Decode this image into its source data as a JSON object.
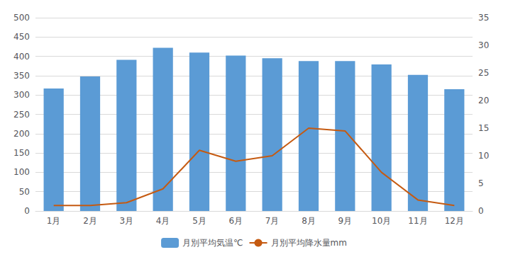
{
  "chart_data": {
    "type": "bar",
    "categories": [
      "1月",
      "2月",
      "3月",
      "4月",
      "5月",
      "6月",
      "7月",
      "8月",
      "9月",
      "10月",
      "11月",
      "12月"
    ],
    "series": [
      {
        "name": "月別平均気温℃",
        "type": "bar",
        "color": "#5B9BD5",
        "values": [
          317,
          348,
          391,
          422,
          410,
          402,
          395,
          388,
          388,
          379,
          352,
          315
        ]
      },
      {
        "name": "月別平均降水量mm",
        "type": "line",
        "color": "#C55A11",
        "axis": "y2",
        "values": [
          1.0,
          1.0,
          1.5,
          4.0,
          11.0,
          9.0,
          10.0,
          15.0,
          14.5,
          7.0,
          2.0,
          1.0
        ]
      }
    ],
    "ylim": [
      0,
      500
    ],
    "yticks": [
      0,
      50,
      100,
      150,
      200,
      250,
      300,
      350,
      400,
      450,
      500
    ],
    "y2lim": [
      0,
      35
    ],
    "y2ticks": [
      0,
      5,
      10,
      15,
      20,
      25,
      30,
      35
    ],
    "grid": true,
    "legend": "bottom"
  }
}
